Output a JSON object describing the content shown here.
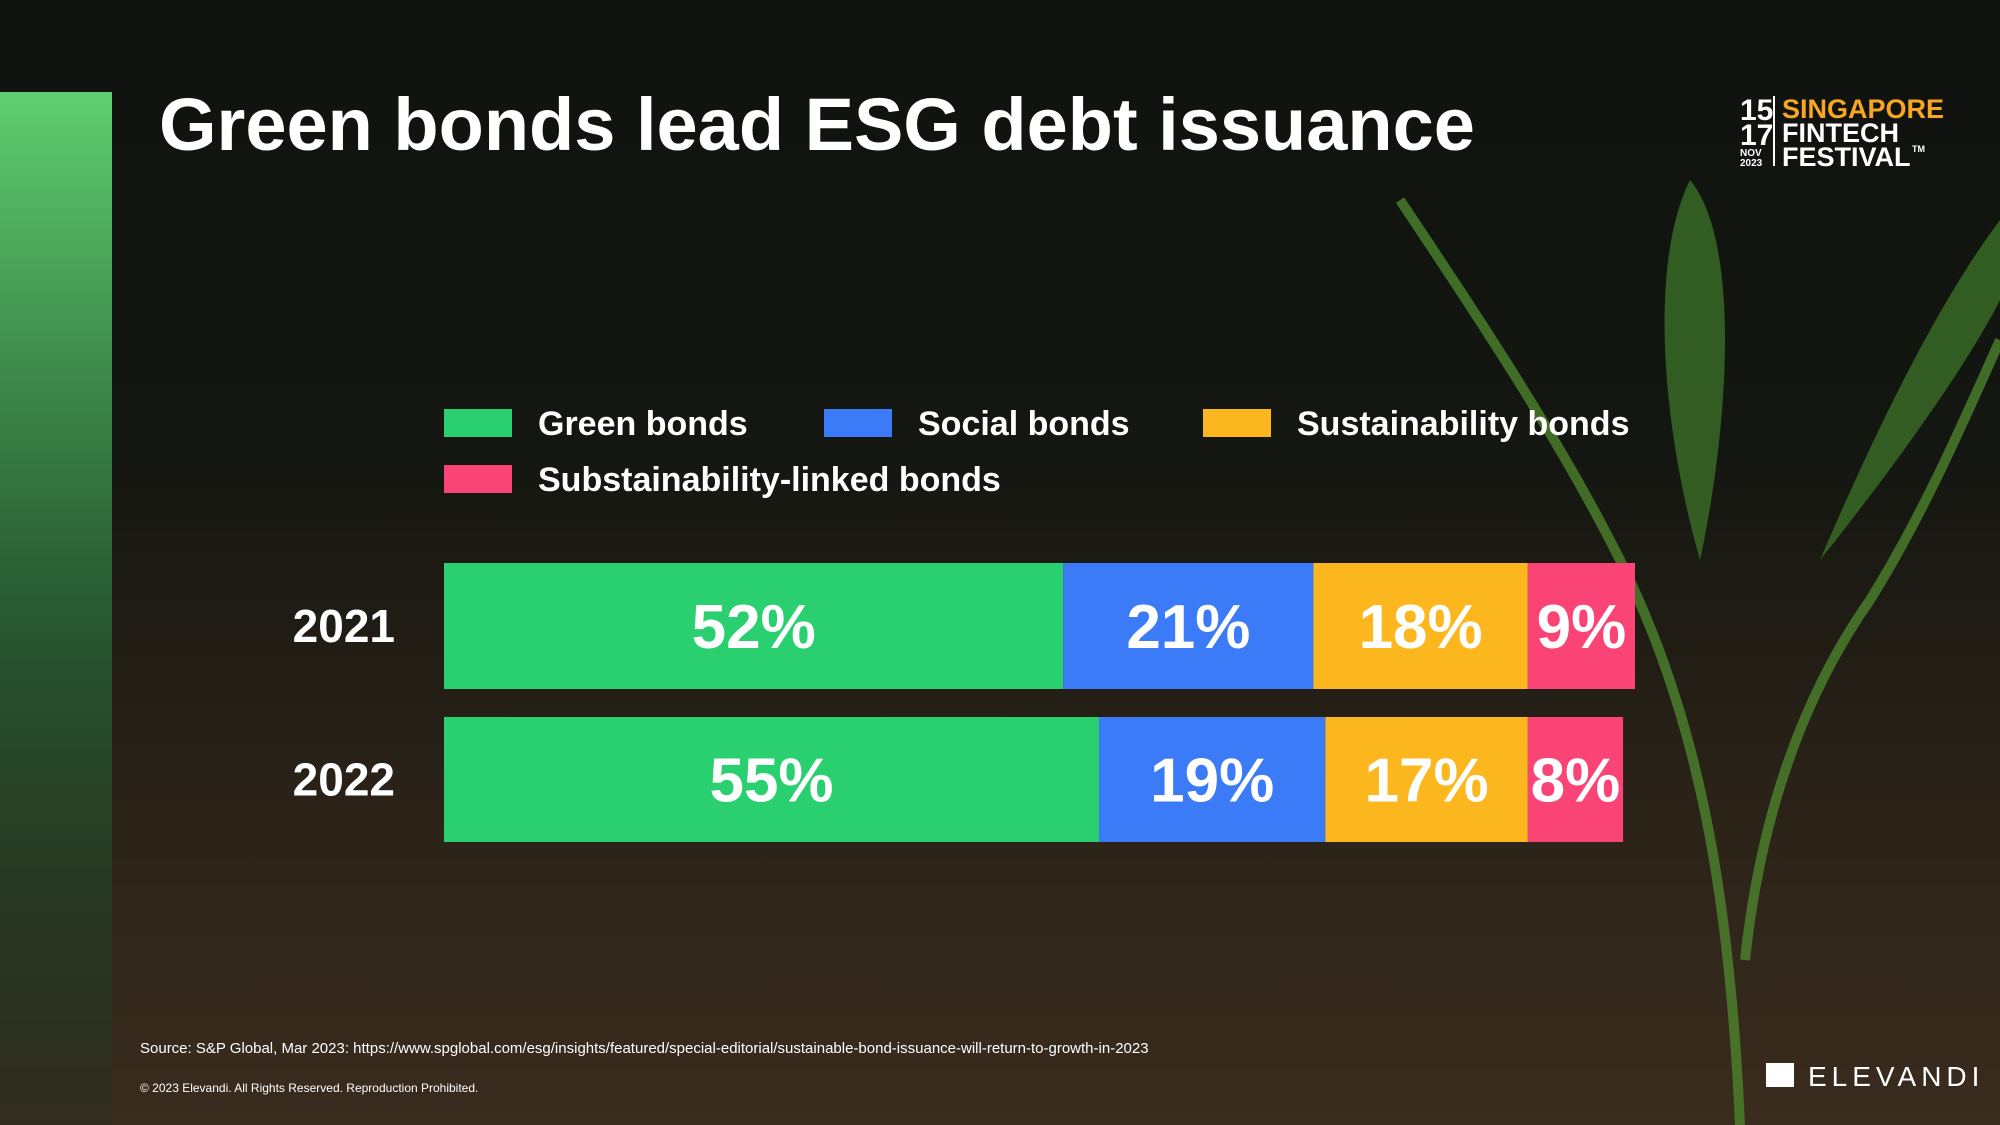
{
  "chart_data": {
    "type": "stacked-bar",
    "title": "Green bonds lead ESG debt issuance",
    "categories": [
      "2021",
      "2022"
    ],
    "series": [
      {
        "name": "Green bonds",
        "color": "#2ad06f",
        "values": [
          52,
          55
        ],
        "value_labels": [
          "52%",
          "55%"
        ]
      },
      {
        "name": "Social bonds",
        "color": "#3b7bf7",
        "values": [
          21,
          19
        ],
        "value_labels": [
          "21%",
          "19%"
        ]
      },
      {
        "name": "Sustainability bonds",
        "color": "#fdb71e",
        "values": [
          18,
          17
        ],
        "value_labels": [
          "18%",
          "17%"
        ]
      },
      {
        "name": "Substainability-linked bonds",
        "color": "#fb4476",
        "values": [
          9,
          8
        ],
        "value_labels": [
          "9%",
          "8%"
        ]
      }
    ],
    "xlim": [
      0,
      100
    ]
  },
  "footer": {
    "source": "Source: S&P Global, Mar 2023: https://www.spglobal.com/esg/insights/featured/special-editorial/sustainable-bond-issuance-will-return-to-growth-in-2023",
    "copyright": "© 2023 Elevandi. All Rights Reserved. Reproduction Prohibited."
  },
  "logos": {
    "day_start": "15",
    "day_end": "17",
    "month": "NOV",
    "year": "2023",
    "line1": "SINGAPORE",
    "line2": "FINTECH",
    "line3": "FESTIVAL",
    "tm": "TM",
    "brand": "ELEVANDI"
  }
}
